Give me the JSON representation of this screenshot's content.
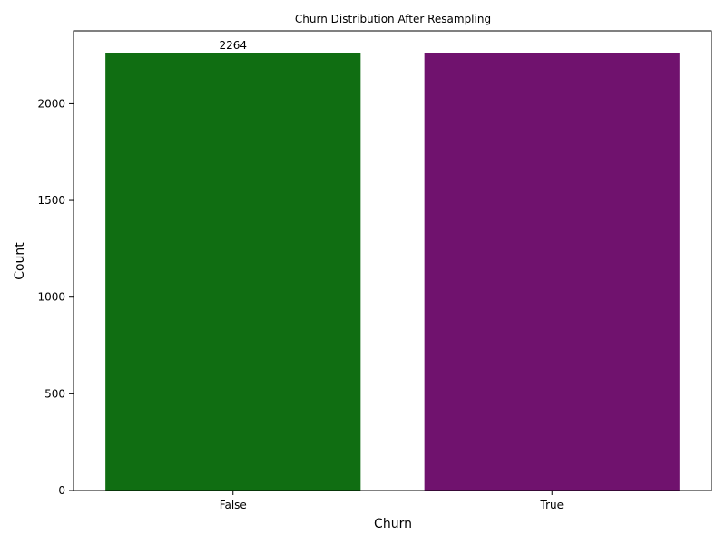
{
  "chart_data": {
    "type": "bar",
    "title": "Churn Distribution After Resampling",
    "xlabel": "Churn",
    "ylabel": "Count",
    "categories": [
      "False",
      "True"
    ],
    "values": [
      2264,
      2264
    ],
    "colors": [
      "#106e12",
      "#70126e"
    ],
    "data_labels": [
      "2264",
      ""
    ],
    "ylim": [
      0,
      2377
    ],
    "yticks": [
      0,
      500,
      1000,
      1500,
      2000
    ],
    "grid": false,
    "legend": "none"
  }
}
